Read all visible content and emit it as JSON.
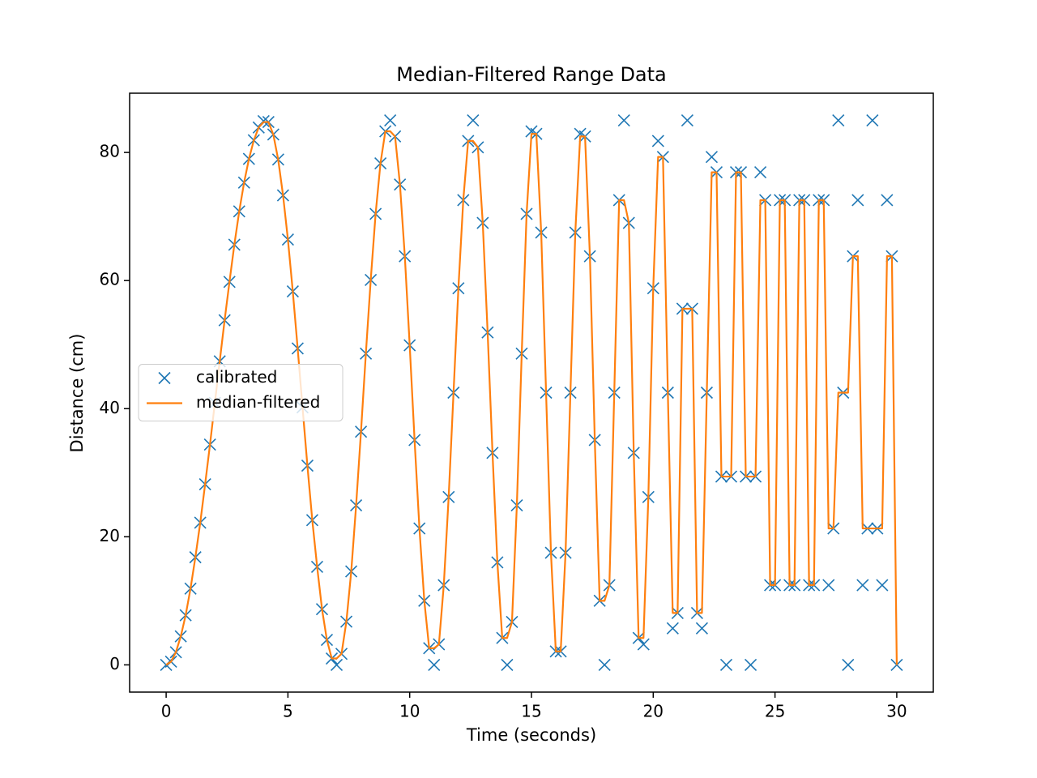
{
  "chart_data": {
    "type": "scatter-line",
    "title": "Median-Filtered Range Data",
    "x_label": "Time (seconds)",
    "y_label": "Distance (cm)",
    "x": [
      0,
      0.2,
      0.4,
      0.6,
      0.8,
      1,
      1.2,
      1.4,
      1.6,
      1.8,
      2,
      2.2,
      2.4,
      2.6,
      2.8,
      3,
      3.2,
      3.4,
      3.6,
      3.8,
      4,
      4.2,
      4.4,
      4.6,
      4.8,
      5,
      5.2,
      5.4,
      5.6,
      5.8,
      6,
      6.2,
      6.4,
      6.6,
      6.8,
      7,
      7.2,
      7.4,
      7.6,
      7.8,
      8,
      8.2,
      8.4,
      8.6,
      8.8,
      9,
      9.2,
      9.4,
      9.6,
      9.8,
      10,
      10.2,
      10.4,
      10.6,
      10.8,
      11,
      11.2,
      11.4,
      11.6,
      11.8,
      12,
      12.2,
      12.4,
      12.6,
      12.8,
      13,
      13.2,
      13.4,
      13.6,
      13.8,
      14,
      14.2,
      14.4,
      14.6,
      14.8,
      15,
      15.2,
      15.4,
      15.6,
      15.8,
      16,
      16.2,
      16.4,
      16.6,
      16.8,
      17,
      17.2,
      17.4,
      17.6,
      17.8,
      18,
      18.2,
      18.4,
      18.6,
      18.8,
      19,
      19.2,
      19.4,
      19.6,
      19.8,
      20,
      20.2,
      20.4,
      20.6,
      20.8,
      21,
      21.2,
      21.4,
      21.6,
      21.8,
      22,
      22.2,
      22.4,
      22.6,
      22.8,
      23,
      23.2,
      23.4,
      23.6,
      23.8,
      24,
      24.2,
      24.4,
      24.6,
      24.8,
      25,
      25.2,
      25.4,
      25.6,
      25.8,
      26,
      26.2,
      26.4,
      26.6,
      26.8,
      27,
      27.2,
      27.4,
      27.6,
      27.8,
      28,
      28.2,
      28.4,
      28.6,
      28.8,
      29,
      29.2,
      29.4,
      29.6,
      29.8,
      30
    ],
    "series": [
      {
        "name": "calibrated",
        "kind": "scatter",
        "marker": "x",
        "color": "#1f77b4",
        "values": [
          0,
          0.5,
          1.98,
          4.45,
          7.74,
          11.9,
          16.8,
          22.2,
          28.2,
          34.4,
          40.9,
          47.4,
          53.8,
          59.8,
          65.6,
          70.8,
          75.3,
          79,
          81.9,
          83.9,
          84.9,
          84.75,
          82.8,
          78.9,
          73.3,
          66.4,
          58.3,
          49.4,
          40.2,
          31.1,
          22.6,
          15.3,
          8.7,
          3.9,
          1,
          0,
          1.72,
          6.75,
          14.6,
          24.9,
          36.4,
          48.6,
          60.1,
          70.4,
          78.3,
          83.3,
          85,
          82.5,
          75,
          63.8,
          49.9,
          35.1,
          21.3,
          10,
          2.6,
          0,
          3.2,
          12.45,
          26.2,
          42.5,
          58.8,
          72.55,
          81.8,
          85,
          80.8,
          69,
          51.9,
          33.1,
          16,
          4.2,
          0,
          6.7,
          24.9,
          48.6,
          70.4,
          83.3,
          82.9,
          67.5,
          42.5,
          17.5,
          2.1,
          2.1,
          17.5,
          42.5,
          67.5,
          82.9,
          82.5,
          63.8,
          35.1,
          10,
          0,
          12.45,
          42.5,
          72.55,
          85,
          69,
          33.1,
          4.2,
          3.2,
          26.2,
          58.8,
          81.8,
          79.3,
          42.5,
          5.7,
          8.1,
          55.6,
          85,
          55.6,
          8.1,
          5.7,
          42.5,
          79.3,
          76.9,
          29.4,
          0,
          29.4,
          76.9,
          76.9,
          29.4,
          0,
          29.4,
          76.9,
          72.55,
          12.45,
          12.45,
          72.55,
          72.55,
          12.45,
          12.45,
          72.55,
          72.55,
          12.45,
          12.45,
          72.55,
          72.55,
          12.45,
          21.3,
          85,
          42.5,
          0,
          63.8,
          72.55,
          12.45,
          21.3,
          85,
          21.3,
          12.45,
          72.55,
          63.8,
          0
        ]
      },
      {
        "name": "median-filtered",
        "kind": "line",
        "color": "#ff7f0e",
        "values": [
          0,
          0.5,
          1.98,
          4.45,
          7.74,
          11.9,
          16.8,
          22.2,
          28.2,
          34.4,
          40.9,
          47.4,
          53.8,
          59.8,
          65.6,
          70.8,
          75.3,
          79,
          81.9,
          83.9,
          84.75,
          84.75,
          82.8,
          78.9,
          73.3,
          66.4,
          58.3,
          49.4,
          40.2,
          31.1,
          22.6,
          15.3,
          8.7,
          3.9,
          1,
          1,
          1.72,
          6.75,
          14.6,
          24.9,
          36.4,
          48.6,
          60.1,
          70.4,
          78.3,
          83.3,
          83.3,
          82.5,
          75,
          63.8,
          49.9,
          35.1,
          21.3,
          10,
          2.6,
          2.6,
          3.2,
          12.45,
          26.2,
          42.5,
          58.8,
          72.55,
          81.8,
          81.8,
          80.8,
          69,
          51.9,
          33.1,
          16,
          4.2,
          4.2,
          6.7,
          24.9,
          48.6,
          70.4,
          82.9,
          82.9,
          67.5,
          42.5,
          17.5,
          2.1,
          2.1,
          17.5,
          42.5,
          67.5,
          82.5,
          82.5,
          63.8,
          35.1,
          10,
          10,
          12.45,
          42.5,
          72.55,
          72.55,
          69,
          33.1,
          4.2,
          4.2,
          26.2,
          58.8,
          79.3,
          79.3,
          42.5,
          8.1,
          8.1,
          55.6,
          55.6,
          55.6,
          8.1,
          8.1,
          42.5,
          76.9,
          76.9,
          29.4,
          29.4,
          29.4,
          76.9,
          76.9,
          29.4,
          29.4,
          29.4,
          72.55,
          72.55,
          12.45,
          12.45,
          72.55,
          72.55,
          12.45,
          12.45,
          72.55,
          72.55,
          12.45,
          12.45,
          72.55,
          72.55,
          21.3,
          21.3,
          42.5,
          42.5,
          42.5,
          63.8,
          63.8,
          21.3,
          21.3,
          21.3,
          21.3,
          21.3,
          63.8,
          63.8,
          0
        ]
      }
    ],
    "xlim": [
      -1.5,
      31.5
    ],
    "ylim": [
      -4.25,
      89.25
    ],
    "xticks": [
      0,
      5,
      10,
      15,
      20,
      25,
      30
    ],
    "yticks": [
      0,
      20,
      40,
      60,
      80
    ],
    "grid": false,
    "legend": "center left"
  }
}
